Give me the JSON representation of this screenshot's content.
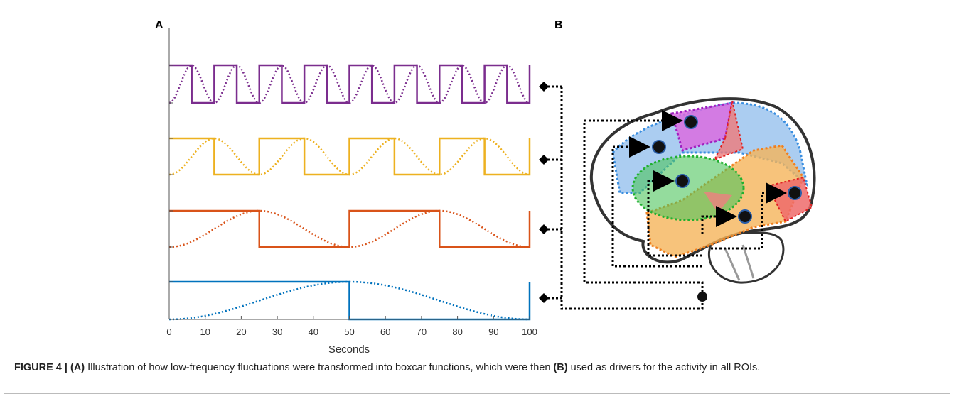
{
  "panel_a": {
    "label": "A",
    "xlim": [
      0,
      100
    ],
    "xticks": [
      0,
      10,
      20,
      30,
      40,
      50,
      60,
      70,
      80,
      90,
      100
    ],
    "xlabel": "Seconds"
  },
  "panel_b": {
    "label": "B"
  },
  "caption": {
    "figure": "FIGURE 4 | ",
    "part_a": "(A)",
    "text_a": " Illustration of how low-frequency fluctuations were transformed into boxcar functions, which were then ",
    "part_b": "(B)",
    "text_b": " used as drivers for the activity in all ROIs."
  }
}
